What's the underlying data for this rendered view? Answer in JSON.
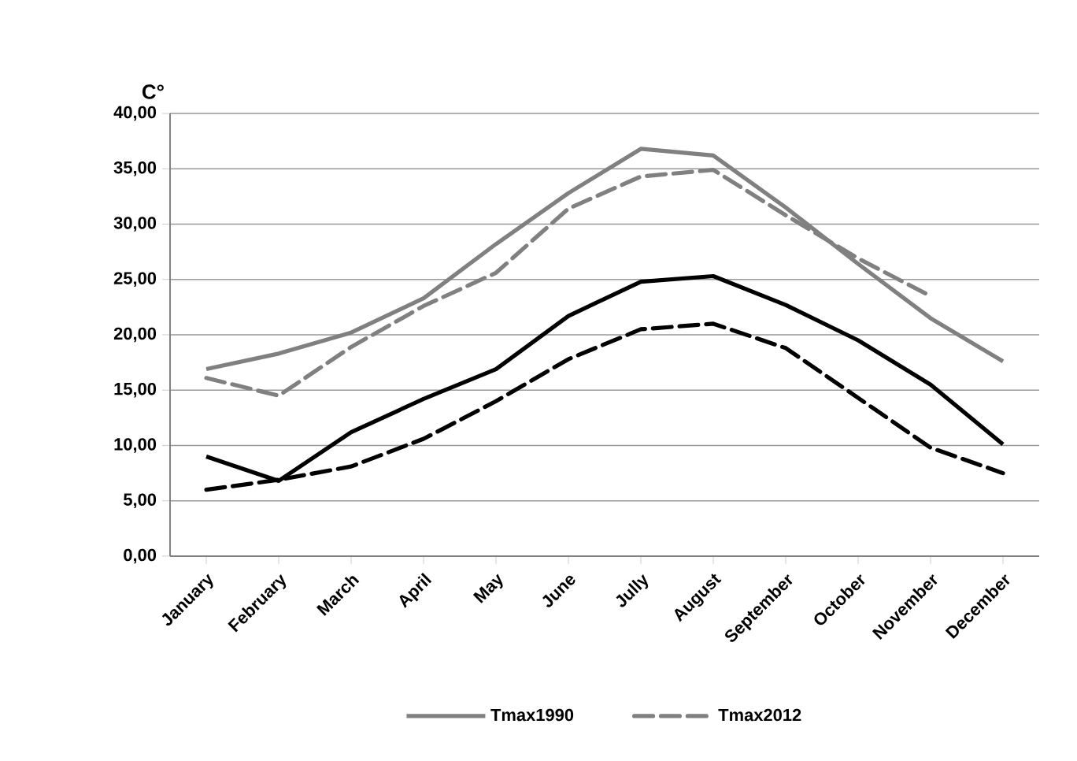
{
  "chart_data": {
    "type": "line",
    "ylabel": "C°",
    "categories": [
      "January",
      "February",
      "March",
      "April",
      "May",
      "June",
      "Jully",
      "August",
      "September",
      "October",
      "November",
      "December"
    ],
    "series": [
      {
        "name": "Tmax1990",
        "color": "#808080",
        "line_style": "solid",
        "values": [
          16.9,
          18.3,
          20.2,
          23.3,
          28.2,
          32.8,
          36.8,
          36.2,
          31.5,
          26.4,
          21.5,
          17.6
        ]
      },
      {
        "name": "Tmax2012",
        "color": "#808080",
        "line_style": "dashed",
        "values": [
          16.1,
          14.5,
          18.9,
          22.6,
          25.6,
          31.4,
          34.3,
          34.9,
          30.8,
          26.9,
          23.5,
          null
        ]
      },
      {
        "color": "#000000",
        "line_style": "solid",
        "values": [
          9.0,
          6.8,
          11.2,
          14.2,
          16.9,
          21.7,
          24.8,
          25.3,
          22.7,
          19.5,
          15.5,
          10.1
        ]
      },
      {
        "color": "#000000",
        "line_style": "dashed",
        "values": [
          6.0,
          6.9,
          8.1,
          10.6,
          14.0,
          17.8,
          20.5,
          21.0,
          18.8,
          14.3,
          9.8,
          7.5
        ]
      }
    ],
    "ylim": [
      0,
      40
    ],
    "yticks": [
      {
        "value": 0,
        "label": "0,00"
      },
      {
        "value": 5,
        "label": "5,00"
      },
      {
        "value": 10,
        "label": "10,00"
      },
      {
        "value": 15,
        "label": "15,00"
      },
      {
        "value": 20,
        "label": "20,00"
      },
      {
        "value": 25,
        "label": "25,00"
      },
      {
        "value": 30,
        "label": "30,00"
      },
      {
        "value": 35,
        "label": "35,00"
      },
      {
        "value": 40,
        "label": "40,00"
      }
    ],
    "grid": "y",
    "legend": "bottom",
    "marker": "none"
  }
}
